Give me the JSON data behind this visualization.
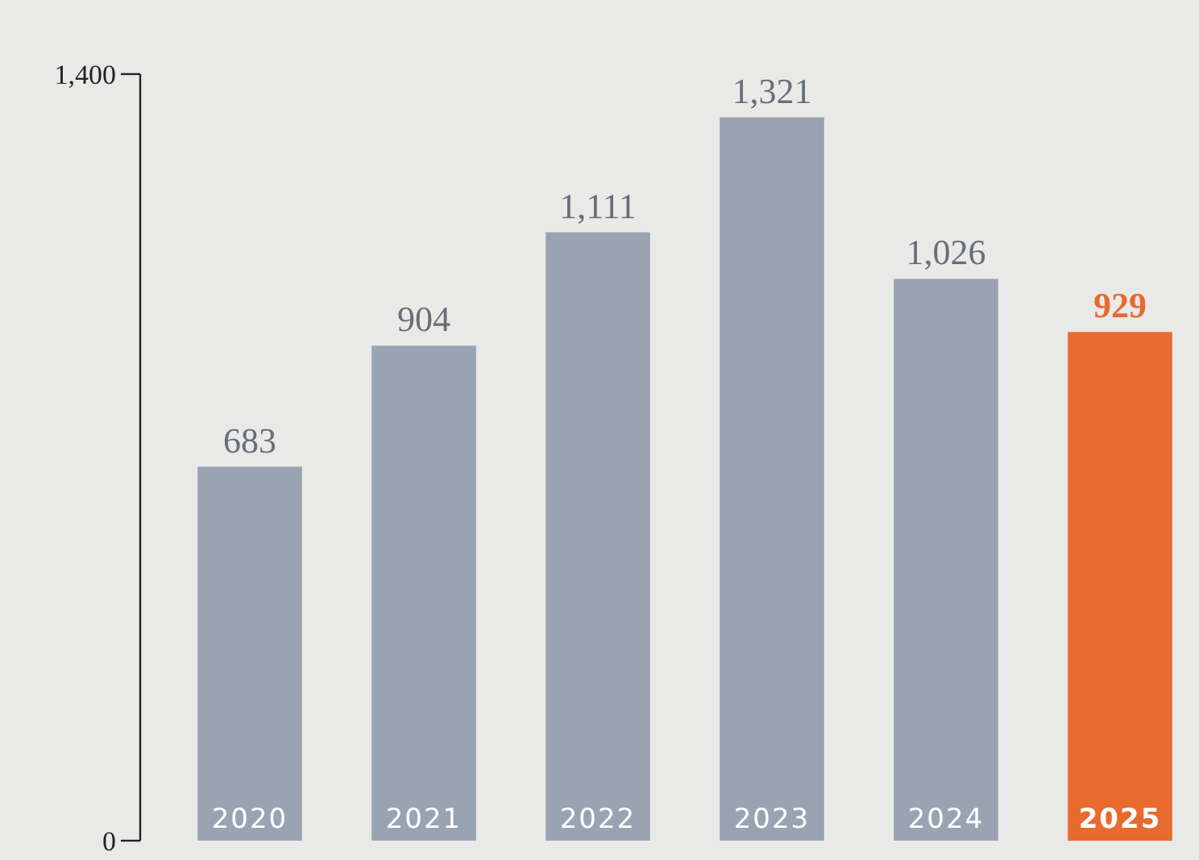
{
  "chart_data": {
    "type": "bar",
    "categories": [
      "2020",
      "2021",
      "2022",
      "2023",
      "2024",
      "2025"
    ],
    "values": [
      683,
      904,
      1111,
      1321,
      1026,
      929
    ],
    "value_labels": [
      "683",
      "904",
      "1,111",
      "1,321",
      "1,026",
      "929"
    ],
    "colors": [
      "#9aa3b1",
      "#9aa3b1",
      "#9aa3b1",
      "#9aa3b1",
      "#9aa3b1",
      "#e96a2e"
    ],
    "ylim": [
      0,
      1400
    ],
    "yticks": [
      0,
      {
        "value": 1400,
        "label": "1,400"
      }
    ],
    "grid": false
  }
}
